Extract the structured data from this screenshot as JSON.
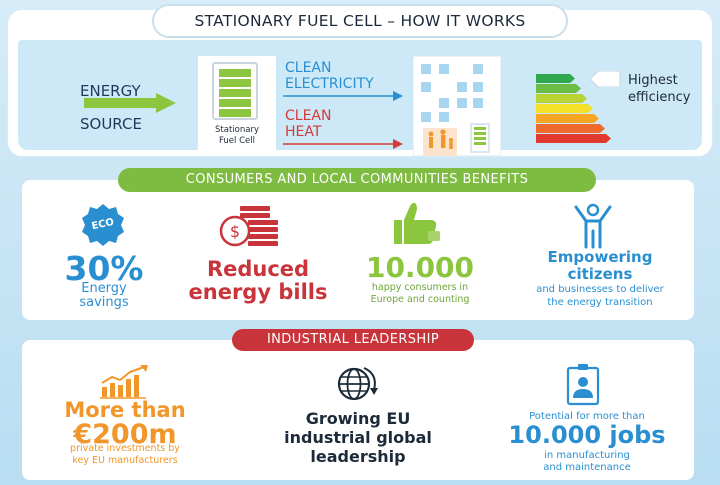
{
  "header": {
    "title": "STATIONARY FUEL CELL – HOW IT WORKS"
  },
  "diagram": {
    "energy_source_line1": "ENERGY",
    "energy_source_line2": "SOURCE",
    "fuel_cell_label_line1": "Stationary",
    "fuel_cell_label_line2": "Fuel Cell",
    "clean_electricity_line1": "CLEAN",
    "clean_electricity_line2": "ELECTRICITY",
    "clean_heat_line1": "CLEAN",
    "clean_heat_line2": "HEAT",
    "efficiency_line1": "Highest",
    "efficiency_line2": "efficiency"
  },
  "consumers": {
    "section_title": "CONSUMERS AND LOCAL COMMUNITIES BENEFITS",
    "eco_badge": "ECO",
    "savings_value": "30%",
    "savings_label_line1": "Energy",
    "savings_label_line2": "savings",
    "bills_line1": "Reduced",
    "bills_line2": "energy bills",
    "consumers_value": "10.000",
    "consumers_label_line1": "happy consumers in",
    "consumers_label_line2": "Europe and counting",
    "empower_line1": "Empowering",
    "empower_line2": "citizens",
    "empower_label_line1": "and businesses to deliver",
    "empower_label_line2": "the energy transition"
  },
  "industry": {
    "section_title": "INDUSTRIAL LEADERSHIP",
    "invest_line1": "More than",
    "invest_line2": "€200m",
    "invest_label_line1": "private investments by",
    "invest_label_line2": "key EU manufacturers",
    "leadership_line1": "Growing EU",
    "leadership_line2": "industrial global",
    "leadership_line3": "leadership",
    "jobs_intro": "Potential for more than",
    "jobs_value": "10.000 jobs",
    "jobs_label_line1": "in manufacturing",
    "jobs_label_line2": "and maintenance"
  },
  "colors": {
    "green": "#7dbb41",
    "red": "#c9333a",
    "blue": "#2a8fd1",
    "orange": "#f0962a"
  }
}
